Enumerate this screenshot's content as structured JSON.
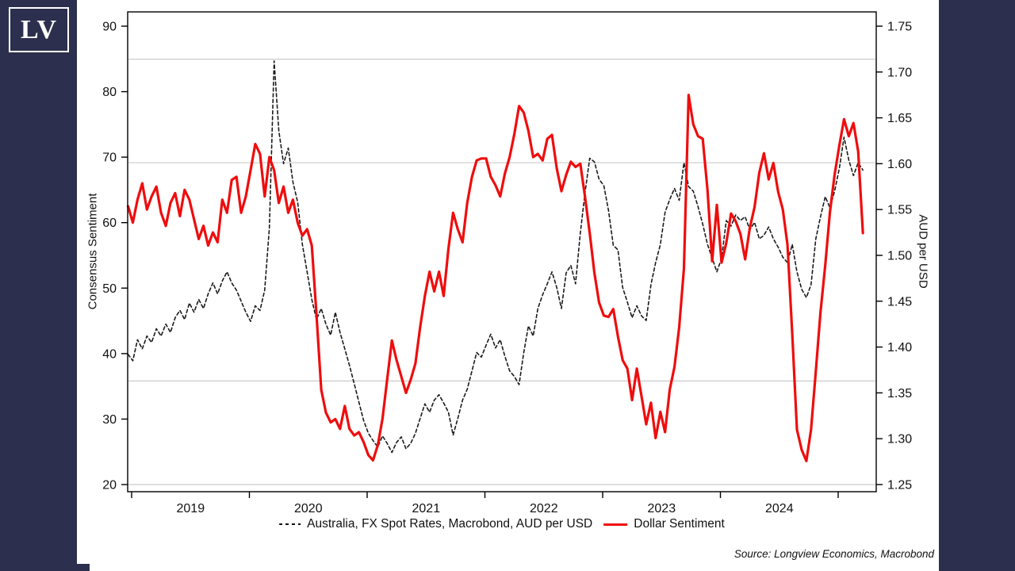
{
  "page": {
    "band_color": "#2d2f4e",
    "background": "#ffffff"
  },
  "logo": {
    "text": "LV"
  },
  "source": {
    "text": "Source: Longview Economics, Macrobond"
  },
  "chart_data": {
    "type": "line",
    "title": "",
    "grid": "horizontal-partial",
    "legend_position": "bottom",
    "x_axis": {
      "ticks_years": [
        2019,
        2020,
        2021,
        2022,
        2023,
        2024,
        2025
      ],
      "labels": [
        "2019",
        "2020",
        "2021",
        "2022",
        "2023",
        "2024"
      ],
      "range": [
        2018.97,
        2025.32
      ]
    },
    "left_axis": {
      "title": "Consensus Sentiment",
      "ticks": [
        20,
        30,
        40,
        50,
        60,
        70,
        80,
        90
      ],
      "range": [
        20,
        90
      ]
    },
    "right_axis": {
      "title": "AUD per USD",
      "ticks": [
        "1.25",
        "1.30",
        "1.35",
        "1.40",
        "1.45",
        "1.50",
        "1.55",
        "1.60",
        "1.65",
        "1.70",
        "1.75"
      ],
      "range": [
        1.25,
        1.75
      ]
    },
    "gridlines_right_values": [
      1.714,
      1.601,
      1.363,
      1.25
    ],
    "series": [
      {
        "name": "Australia, FX Spot Rates, Macrobond, AUD per USD",
        "axis": "right",
        "style": "dashed",
        "color": "#1a1a1a",
        "start": 2018.97,
        "step": 0.04,
        "values": [
          1.392,
          1.385,
          1.408,
          1.398,
          1.412,
          1.405,
          1.42,
          1.412,
          1.425,
          1.416,
          1.432,
          1.44,
          1.43,
          1.448,
          1.438,
          1.452,
          1.442,
          1.458,
          1.47,
          1.458,
          1.472,
          1.482,
          1.47,
          1.462,
          1.45,
          1.438,
          1.428,
          1.445,
          1.44,
          1.462,
          1.53,
          1.712,
          1.636,
          1.6,
          1.617,
          1.58,
          1.558,
          1.512,
          1.482,
          1.452,
          1.43,
          1.442,
          1.425,
          1.413,
          1.438,
          1.416,
          1.398,
          1.38,
          1.36,
          1.34,
          1.32,
          1.306,
          1.298,
          1.291,
          1.303,
          1.295,
          1.285,
          1.296,
          1.302,
          1.289,
          1.295,
          1.306,
          1.322,
          1.338,
          1.329,
          1.342,
          1.348,
          1.339,
          1.329,
          1.304,
          1.322,
          1.342,
          1.354,
          1.374,
          1.394,
          1.389,
          1.402,
          1.414,
          1.399,
          1.408,
          1.39,
          1.374,
          1.368,
          1.359,
          1.394,
          1.423,
          1.412,
          1.442,
          1.457,
          1.469,
          1.482,
          1.465,
          1.442,
          1.481,
          1.489,
          1.469,
          1.524,
          1.568,
          1.606,
          1.602,
          1.583,
          1.576,
          1.549,
          1.511,
          1.506,
          1.465,
          1.449,
          1.432,
          1.445,
          1.434,
          1.429,
          1.468,
          1.492,
          1.512,
          1.547,
          1.561,
          1.573,
          1.56,
          1.601,
          1.575,
          1.57,
          1.553,
          1.534,
          1.512,
          1.497,
          1.482,
          1.497,
          1.538,
          1.532,
          1.544,
          1.538,
          1.542,
          1.528,
          1.536,
          1.518,
          1.522,
          1.531,
          1.518,
          1.509,
          1.498,
          1.492,
          1.512,
          1.482,
          1.463,
          1.454,
          1.468,
          1.518,
          1.542,
          1.564,
          1.552,
          1.57,
          1.595,
          1.629,
          1.604,
          1.587,
          1.601,
          1.593
        ]
      },
      {
        "name": "Dollar Sentiment",
        "axis": "left",
        "style": "solid",
        "color": "#ef0d0d",
        "start": 2018.97,
        "step": 0.04,
        "values": [
          62.5,
          60.0,
          63.5,
          66.0,
          62.0,
          64.0,
          65.5,
          61.5,
          59.5,
          63.0,
          64.5,
          61.0,
          65.0,
          63.5,
          60.5,
          57.5,
          59.5,
          56.5,
          58.5,
          57.0,
          63.5,
          61.5,
          66.5,
          67.0,
          61.5,
          64.0,
          68.0,
          72.0,
          70.5,
          64.0,
          70.0,
          68.0,
          63.0,
          65.5,
          61.5,
          63.5,
          60.0,
          58.0,
          59.0,
          56.5,
          46.0,
          34.5,
          31.0,
          29.5,
          30.0,
          28.5,
          32.0,
          28.5,
          27.5,
          28.0,
          26.5,
          24.5,
          23.7,
          26.0,
          30.0,
          36.0,
          42.0,
          39.0,
          36.5,
          34.0,
          36.0,
          38.5,
          44.0,
          48.8,
          52.5,
          49.5,
          52.5,
          48.8,
          56.0,
          61.5,
          59.0,
          57.0,
          63.0,
          67.0,
          69.5,
          69.8,
          69.8,
          67.0,
          65.7,
          64.0,
          67.5,
          70.0,
          73.5,
          77.8,
          76.8,
          74.0,
          70.0,
          70.5,
          69.5,
          72.8,
          73.4,
          68.3,
          64.8,
          67.3,
          69.3,
          68.5,
          69.0,
          64.0,
          58.4,
          52.3,
          47.8,
          45.8,
          45.6,
          46.8,
          42.6,
          39.0,
          37.7,
          32.9,
          37.7,
          33.5,
          29.2,
          32.5,
          27.1,
          31.1,
          28.0,
          34.5,
          38.0,
          44.0,
          53.0,
          79.5,
          75.0,
          73.2,
          72.8,
          65.0,
          54.1,
          62.7,
          53.9,
          56.9,
          61.4,
          60.2,
          58.3,
          54.4,
          59.2,
          62.4,
          67.6,
          70.6,
          66.6,
          69.1,
          64.7,
          62.0,
          56.6,
          43.0,
          28.4,
          25.3,
          23.6,
          28.4,
          37.3,
          46.3,
          53.5,
          61.6,
          67.3,
          71.8,
          75.8,
          73.2,
          75.2,
          70.9,
          58.4
        ]
      }
    ]
  }
}
